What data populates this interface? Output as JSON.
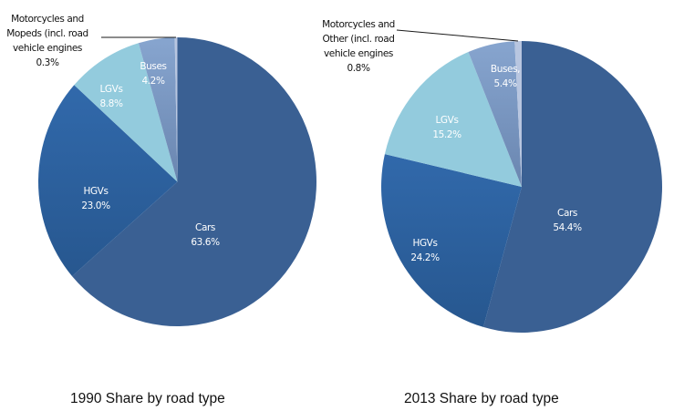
{
  "chart_data": [
    {
      "type": "pie",
      "title": "1990 Share by road type",
      "unit": "%",
      "categories": [
        "Cars",
        "HGVs",
        "LGVs",
        "Buses",
        "Motorcycles and Mopeds (incl. road vehicle engines"
      ],
      "values": [
        63.6,
        23.0,
        8.8,
        4.2,
        0.3
      ],
      "labels": [
        {
          "lines": [
            "Cars",
            "63.6%"
          ]
        },
        {
          "lines": [
            "HGVs",
            "23.0%"
          ]
        },
        {
          "lines": [
            "LGVs",
            "8.8%"
          ]
        },
        {
          "lines": [
            "Buses",
            "4.2%"
          ]
        },
        {
          "lines": [
            "Motorcycles and",
            "Mopeds (incl. road",
            "vehicle engines",
            "0.3%"
          ]
        }
      ],
      "direction": "clockwise",
      "start_angle": "12 o'clock"
    },
    {
      "type": "pie",
      "title": "2013 Share by road type",
      "unit": "%",
      "categories": [
        "Cars",
        "HGVs",
        "LGVs",
        "Buses",
        "Motorcycles and Other (incl. road vehicle engines"
      ],
      "values": [
        54.4,
        24.2,
        15.2,
        5.4,
        0.8
      ],
      "labels": [
        {
          "lines": [
            "Cars",
            "54.4%"
          ]
        },
        {
          "lines": [
            "HGVs",
            "24.2%"
          ]
        },
        {
          "lines": [
            "LGVs",
            "15.2%"
          ]
        },
        {
          "lines": [
            "Buses,",
            "5.4%"
          ]
        },
        {
          "lines": [
            "Motorcycles and",
            "Other (incl. road",
            "vehicle engines",
            "0.8%"
          ]
        }
      ],
      "direction": "clockwise",
      "start_angle": "12 o'clock"
    }
  ],
  "colors": {
    "Cars": "#3a6093",
    "HGVs": "#2f65a6",
    "LGVs": "#93cbdd",
    "Buses": "#7f9ec9",
    "Motorcycles": "#b8c6e0",
    "leader": "#1a1a1a"
  }
}
